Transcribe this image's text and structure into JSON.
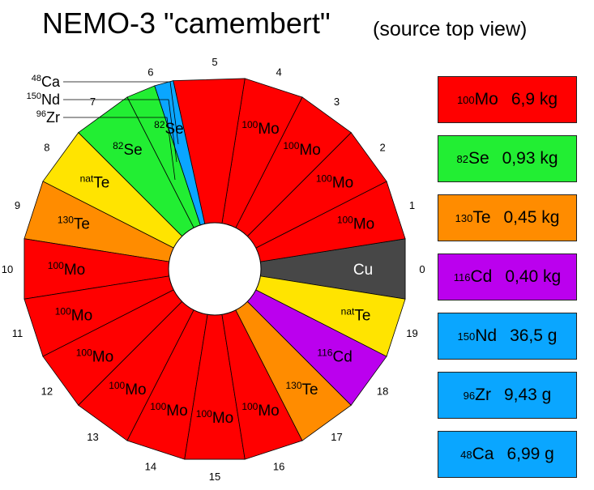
{
  "header": {
    "title": "NEMO-3 \"camembert\"",
    "subtitle": "(source top view)"
  },
  "colors": {
    "mo100": "#ff0000",
    "se82": "#22ee33",
    "te130": "#ff8c00",
    "cd116": "#bb00ee",
    "calib": "#0aa6ff",
    "tenat": "#ffe400",
    "cu": "#474747"
  },
  "sectors": [
    {
      "number": "0",
      "color": "cu",
      "iso": "",
      "element": "Cu"
    },
    {
      "number": "1",
      "color": "mo100",
      "iso": "100",
      "element": "Mo"
    },
    {
      "number": "2",
      "color": "mo100",
      "iso": "100",
      "element": "Mo"
    },
    {
      "number": "3",
      "color": "mo100",
      "iso": "100",
      "element": "Mo"
    },
    {
      "number": "4",
      "color": "mo100",
      "iso": "100",
      "element": "Mo"
    },
    {
      "number": "5",
      "color": "mo100",
      "iso": "",
      "element": ""
    },
    {
      "number": "6",
      "color": "se82",
      "iso": "82",
      "element": "Se"
    },
    {
      "number": "7",
      "color": "se82",
      "iso": "82",
      "element": "Se"
    },
    {
      "number": "8",
      "color": "tenat",
      "iso": "nat",
      "element": "Te"
    },
    {
      "number": "9",
      "color": "te130",
      "iso": "130",
      "element": "Te"
    },
    {
      "number": "10",
      "color": "mo100",
      "iso": "100",
      "element": "Mo"
    },
    {
      "number": "11",
      "color": "mo100",
      "iso": "100",
      "element": "Mo"
    },
    {
      "number": "12",
      "color": "mo100",
      "iso": "100",
      "element": "Mo"
    },
    {
      "number": "13",
      "color": "mo100",
      "iso": "100",
      "element": "Mo"
    },
    {
      "number": "14",
      "color": "mo100",
      "iso": "100",
      "element": "Mo"
    },
    {
      "number": "15",
      "color": "mo100",
      "iso": "100",
      "element": "Mo"
    },
    {
      "number": "16",
      "color": "mo100",
      "iso": "100",
      "element": "Mo"
    },
    {
      "number": "17",
      "color": "te130",
      "iso": "130",
      "element": "Te"
    },
    {
      "number": "18",
      "color": "cd116",
      "iso": "116",
      "element": "Cd"
    },
    {
      "number": "19",
      "color": "tenat",
      "iso": "nat",
      "element": "Te"
    }
  ],
  "calibration_sources": [
    {
      "iso": "48",
      "element": "Ca"
    },
    {
      "iso": "150",
      "element": "Nd"
    },
    {
      "iso": "96",
      "element": "Zr"
    }
  ],
  "legend": [
    {
      "iso": "100",
      "element": "Mo",
      "amount": "6,9 kg",
      "color": "mo100"
    },
    {
      "iso": "82",
      "element": "Se",
      "amount": "0,93 kg",
      "color": "se82"
    },
    {
      "iso": "130",
      "element": "Te",
      "amount": "0,45 kg",
      "color": "te130"
    },
    {
      "iso": "116",
      "element": "Cd",
      "amount": "0,40 kg",
      "color": "cd116"
    },
    {
      "iso": "150",
      "element": "Nd",
      "amount": "36,5 g",
      "color": "calib"
    },
    {
      "iso": "96",
      "element": "Zr",
      "amount": "9,43 g",
      "color": "calib"
    },
    {
      "iso": "48",
      "element": "Ca",
      "amount": "6,99 g",
      "color": "calib"
    }
  ]
}
